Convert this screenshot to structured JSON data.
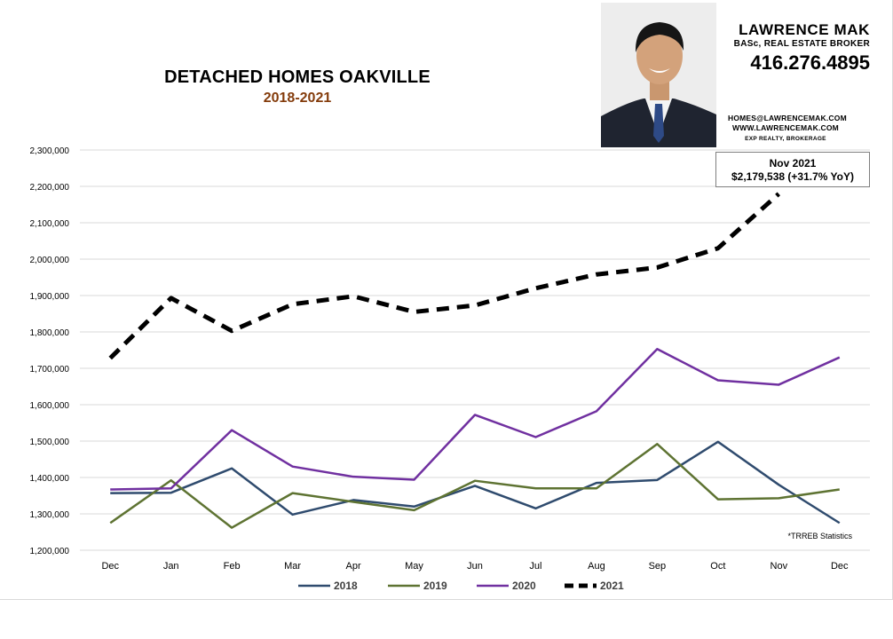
{
  "header": {
    "title": "DETACHED HOMES OAKVILLE",
    "subtitle": "2018-2021",
    "subtitle_color": "#843c0c"
  },
  "agent": {
    "name": "LAWRENCE MAK",
    "role": "BASc, REAL ESTATE BROKER",
    "phone": "416.276.4895",
    "email": "HOMES@LAWRENCEMAK.COM",
    "website": "WWW.LAWRENCEMAK.COM",
    "brokerage": "EXP REALTY, BROKERAGE",
    "photo": "headshot-photo"
  },
  "callout": {
    "line1": "Nov 2021",
    "line2": "$2,179,538 (+31.7% YoY)"
  },
  "source_note": "*TRREB Statistics",
  "chart_data": {
    "type": "line",
    "categories": [
      "Dec",
      "Jan",
      "Feb",
      "Mar",
      "Apr",
      "May",
      "Jun",
      "Jul",
      "Aug",
      "Sep",
      "Oct",
      "Nov",
      "Dec"
    ],
    "ylim": [
      1200000,
      2300000
    ],
    "yticks": [
      "1,200,000",
      "1,300,000",
      "1,400,000",
      "1,500,000",
      "1,600,000",
      "1,700,000",
      "1,800,000",
      "1,900,000",
      "2,000,000",
      "2,100,000",
      "2,200,000",
      "2,300,000"
    ],
    "grid": true,
    "legend_position": "bottom",
    "series": [
      {
        "name": "2018",
        "color": "#2f4b6e",
        "dashed": false,
        "values": [
          1357000,
          1358000,
          1425000,
          1298000,
          1338000,
          1320000,
          1377000,
          1315000,
          1385000,
          1393000,
          1498000,
          1380000,
          1275000
        ]
      },
      {
        "name": "2019",
        "color": "#5e7332",
        "dashed": false,
        "values": [
          1275000,
          1392000,
          1262000,
          1357000,
          1333000,
          1310000,
          1391000,
          1370000,
          1370000,
          1492000,
          1340000,
          1343000,
          1367000
        ]
      },
      {
        "name": "2020",
        "color": "#7030a0",
        "dashed": false,
        "values": [
          1367000,
          1370000,
          1530000,
          1430000,
          1402000,
          1394000,
          1572000,
          1511000,
          1582000,
          1753000,
          1667000,
          1655000,
          1730000
        ]
      },
      {
        "name": "2021",
        "color": "#000000",
        "dashed": true,
        "values": [
          1728000,
          1893000,
          1803000,
          1876000,
          1898000,
          1855000,
          1873000,
          1920000,
          1958000,
          1977000,
          2030000,
          2179538,
          null
        ]
      }
    ]
  }
}
